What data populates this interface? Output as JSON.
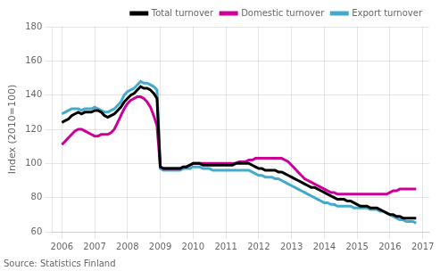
{
  "chart_data": {
    "type": "line",
    "y_label": "Index (2010=100)",
    "annotations": [
      "Source: Statistics Finland"
    ],
    "xlim": [
      2005.7,
      2017.2
    ],
    "ylim": [
      60,
      180
    ],
    "xticks": [
      2006,
      2007,
      2008,
      2009,
      2010,
      2011,
      2012,
      2013,
      2014,
      2015,
      2016,
      2017
    ],
    "yticks": [
      60,
      80,
      100,
      120,
      140,
      160,
      180
    ],
    "grid": true,
    "legend": "top-right",
    "x": [
      2006.0,
      2006.1,
      2006.2,
      2006.3,
      2006.4,
      2006.5,
      2006.6,
      2006.7,
      2006.8,
      2006.9,
      2007.0,
      2007.1,
      2007.2,
      2007.3,
      2007.4,
      2007.5,
      2007.6,
      2007.7,
      2007.8,
      2007.9,
      2008.0,
      2008.1,
      2008.2,
      2008.3,
      2008.4,
      2008.5,
      2008.6,
      2008.7,
      2008.8,
      2008.9,
      2009.0,
      2009.1,
      2009.2,
      2009.3,
      2009.4,
      2009.5,
      2009.6,
      2009.7,
      2009.8,
      2009.9,
      2010.0,
      2010.1,
      2010.2,
      2010.3,
      2010.4,
      2010.5,
      2010.6,
      2010.7,
      2010.8,
      2010.9,
      2011.0,
      2011.1,
      2011.2,
      2011.3,
      2011.4,
      2011.5,
      2011.6,
      2011.7,
      2011.8,
      2011.9,
      2012.0,
      2012.1,
      2012.2,
      2012.3,
      2012.4,
      2012.5,
      2012.6,
      2012.7,
      2012.8,
      2012.9,
      2013.0,
      2013.1,
      2013.2,
      2013.3,
      2013.4,
      2013.5,
      2013.6,
      2013.7,
      2013.8,
      2013.9,
      2014.0,
      2014.1,
      2014.2,
      2014.3,
      2014.4,
      2014.5,
      2014.6,
      2014.7,
      2014.8,
      2014.9,
      2015.0,
      2015.1,
      2015.2,
      2015.3,
      2015.4,
      2015.5,
      2015.6,
      2015.7,
      2015.8,
      2015.9,
      2016.0,
      2016.1,
      2016.2,
      2016.3,
      2016.4,
      2016.5,
      2016.6,
      2016.7,
      2016.8
    ],
    "series": [
      {
        "name": "Total turnover",
        "color": "#000000",
        "values": [
          124,
          125,
          126,
          128,
          129,
          130,
          129,
          130,
          130,
          130,
          131,
          131,
          130,
          128,
          127,
          128,
          129,
          131,
          133,
          136,
          138,
          140,
          141,
          143,
          145,
          144,
          144,
          143,
          141,
          138,
          98,
          97,
          97,
          97,
          97,
          97,
          97,
          98,
          98,
          99,
          100,
          100,
          100,
          99,
          99,
          99,
          99,
          99,
          99,
          99,
          99,
          99,
          99,
          100,
          100,
          100,
          100,
          100,
          99,
          98,
          97,
          97,
          96,
          96,
          96,
          96,
          95,
          95,
          94,
          93,
          92,
          91,
          90,
          89,
          88,
          87,
          86,
          86,
          85,
          84,
          83,
          82,
          81,
          80,
          79,
          79,
          79,
          78,
          78,
          77,
          76,
          75,
          75,
          75,
          74,
          74,
          74,
          73,
          72,
          71,
          70,
          70,
          69,
          69,
          68,
          68,
          68,
          68,
          68
        ]
      },
      {
        "name": "Domestic turnover",
        "color": "#cc0099",
        "values": [
          111,
          113,
          115,
          117,
          119,
          120,
          120,
          119,
          118,
          117,
          116,
          116,
          117,
          117,
          117,
          118,
          120,
          124,
          128,
          132,
          135,
          137,
          138,
          139,
          139,
          138,
          136,
          133,
          128,
          122,
          98,
          97,
          97,
          97,
          97,
          97,
          97,
          98,
          98,
          99,
          100,
          100,
          100,
          100,
          100,
          100,
          100,
          100,
          100,
          100,
          100,
          100,
          100,
          100,
          101,
          101,
          101,
          102,
          102,
          103,
          103,
          103,
          103,
          103,
          103,
          103,
          103,
          103,
          102,
          101,
          99,
          97,
          95,
          93,
          91,
          90,
          89,
          88,
          87,
          86,
          85,
          84,
          83,
          83,
          82,
          82,
          82,
          82,
          82,
          82,
          82,
          82,
          82,
          82,
          82,
          82,
          82,
          82,
          82,
          82,
          83,
          84,
          84,
          85,
          85,
          85,
          85,
          85,
          85
        ]
      },
      {
        "name": "Export turnover",
        "color": "#44aacc",
        "values": [
          129,
          130,
          131,
          132,
          132,
          132,
          131,
          132,
          132,
          132,
          133,
          132,
          131,
          130,
          130,
          131,
          132,
          134,
          136,
          140,
          142,
          143,
          144,
          146,
          148,
          147,
          147,
          146,
          145,
          143,
          97,
          96,
          96,
          96,
          96,
          96,
          96,
          97,
          97,
          97,
          98,
          98,
          98,
          97,
          97,
          97,
          96,
          96,
          96,
          96,
          96,
          96,
          96,
          96,
          96,
          96,
          96,
          96,
          95,
          94,
          93,
          93,
          92,
          92,
          92,
          91,
          91,
          90,
          89,
          88,
          87,
          86,
          85,
          84,
          83,
          82,
          81,
          80,
          79,
          78,
          77,
          77,
          76,
          76,
          75,
          75,
          75,
          75,
          75,
          74,
          74,
          74,
          74,
          74,
          73,
          73,
          73,
          72,
          72,
          71,
          70,
          69,
          68,
          67,
          67,
          66,
          66,
          66,
          65
        ]
      }
    ]
  }
}
